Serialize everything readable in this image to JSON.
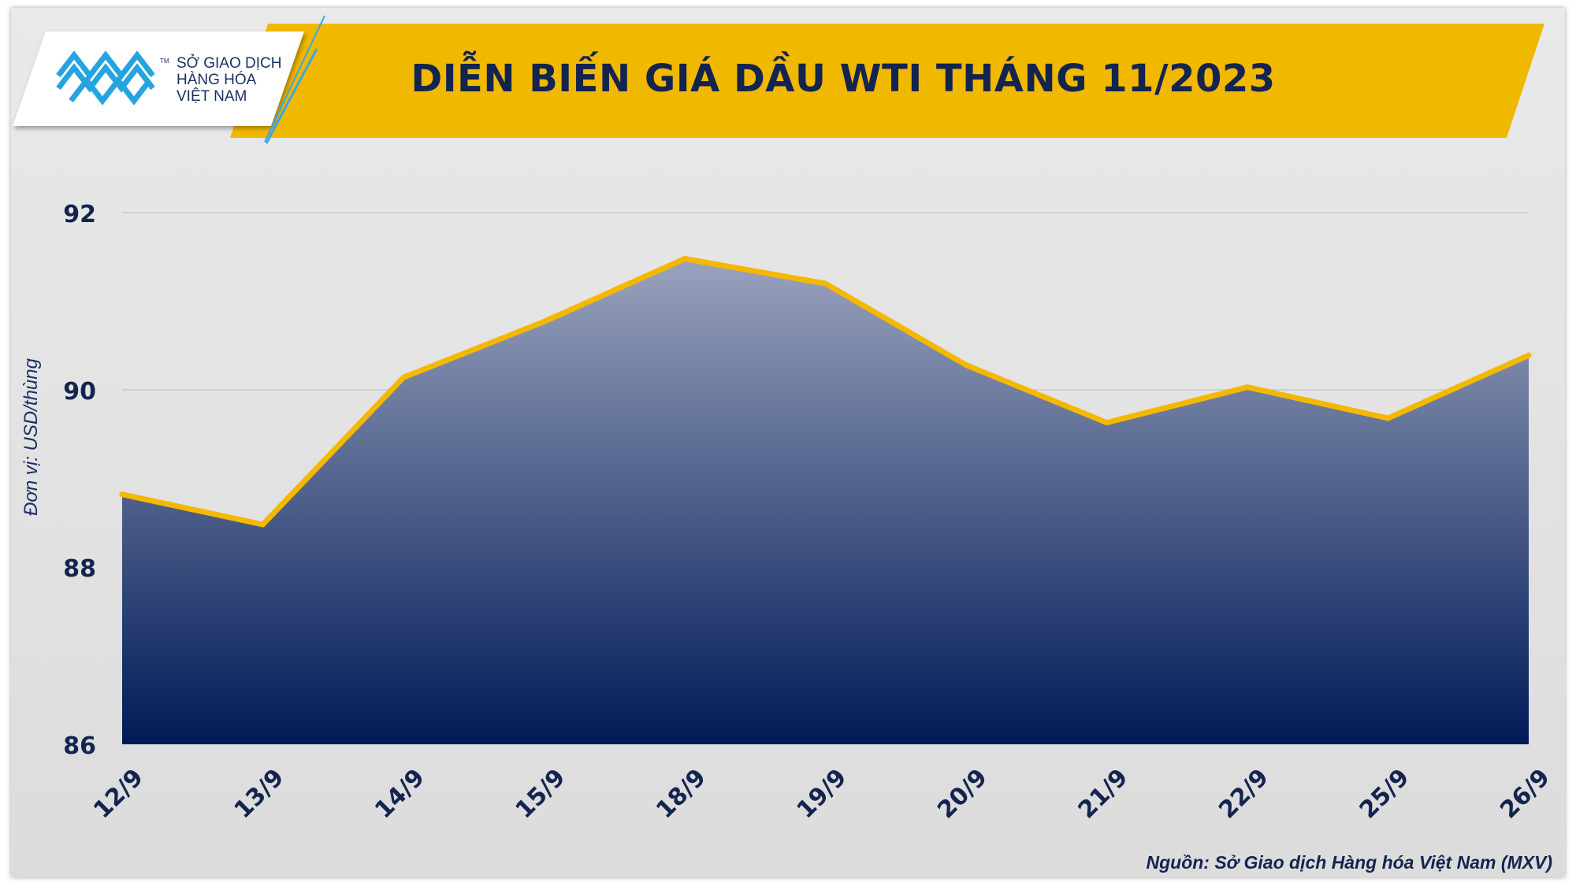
{
  "header": {
    "title": "DIỄN BIẾN GIÁ DẦU WTI THÁNG 11/2023",
    "logo_lines": [
      "SỞ GIAO DỊCH",
      "HÀNG HÓA",
      "VIỆT NAM"
    ],
    "logo_tm": "TM",
    "band_color": "#f1b800",
    "title_color": "#13244f"
  },
  "source": "Nguồn: Sở Giao dịch Hàng hóa Việt Nam (MXV)",
  "chart_data": {
    "type": "area",
    "title": "DIỄN BIẾN GIÁ DẦU WTI THÁNG 11/2023",
    "xlabel": "",
    "ylabel": "Đơn vị: USD/thùng",
    "categories": [
      "12/9",
      "13/9",
      "14/9",
      "15/9",
      "18/9",
      "19/9",
      "20/9",
      "21/9",
      "22/9",
      "25/9",
      "26/9"
    ],
    "series": [
      {
        "values": [
          88.82,
          88.48,
          90.14,
          90.77,
          91.48,
          91.2,
          90.28,
          89.63,
          90.03,
          89.68,
          90.39
        ]
      }
    ],
    "ylim": [
      86,
      92
    ],
    "yticks": [
      86,
      88,
      90,
      92
    ],
    "grid": true,
    "line_color": "#f5b800",
    "fill_top_color": "#9aa3bd",
    "fill_bottom_color": "#001a57"
  }
}
